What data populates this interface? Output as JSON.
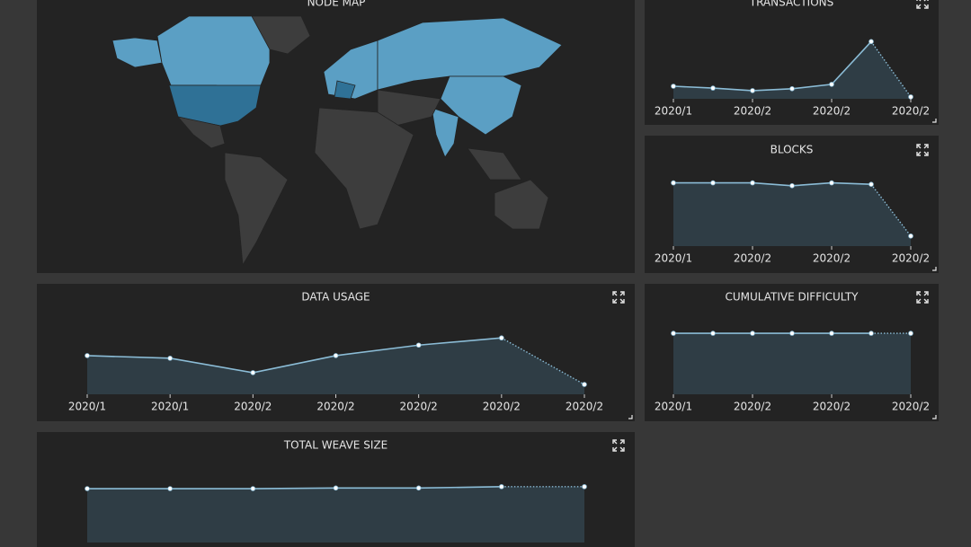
{
  "map": {
    "title": "NODE MAP"
  },
  "chart_data": [
    {
      "type": "area",
      "title": "TRANSACTIONS",
      "categories": [
        "2020/1",
        null,
        "2020/2",
        null,
        "2020/2",
        null,
        "2020/2"
      ],
      "values": [
        20,
        17,
        13,
        16,
        23,
        91,
        3
      ],
      "ylim": [
        0,
        100
      ],
      "color": "#8bbcd6",
      "fill": "#2f3d45",
      "dotted_last": true
    },
    {
      "type": "area",
      "title": "BLOCKS",
      "categories": [
        "2020/1",
        null,
        "2020/2",
        null,
        "2020/2",
        null,
        "2020/2"
      ],
      "values": [
        88,
        88,
        88,
        84,
        88,
        86,
        14
      ],
      "ylim": [
        0,
        100
      ],
      "color": "#8bbcd6",
      "fill": "#2f3d45",
      "dotted_last": true
    },
    {
      "type": "area",
      "title": "DATA USAGE",
      "categories": [
        "2020/1",
        "2020/1",
        "2020/2",
        "2020/2",
        "2020/2",
        "2020/2",
        "2020/2"
      ],
      "values": [
        59,
        55,
        33,
        59,
        75,
        86,
        15
      ],
      "ylim": [
        0,
        100
      ],
      "color": "#8bbcd6",
      "fill": "#2f3d45",
      "dotted_last": true
    },
    {
      "type": "area",
      "title": "CUMULATIVE DIFFICULTY",
      "categories": [
        "2020/1",
        null,
        "2020/2",
        null,
        "2020/2",
        null,
        "2020/2"
      ],
      "values": [
        93,
        93,
        93,
        93,
        93,
        93,
        93
      ],
      "ylim": [
        0,
        100
      ],
      "color": "#8bbcd6",
      "fill": "#2f3d45",
      "dotted_last": true
    },
    {
      "type": "area",
      "title": "TOTAL WEAVE SIZE",
      "categories": [
        null,
        null,
        null,
        null,
        null,
        null,
        null
      ],
      "values": [
        81,
        81,
        81,
        82,
        82,
        84,
        84
      ],
      "ylim": [
        0,
        100
      ],
      "color": "#8bbcd6",
      "fill": "#2f3d45",
      "dotted_last": true
    }
  ]
}
